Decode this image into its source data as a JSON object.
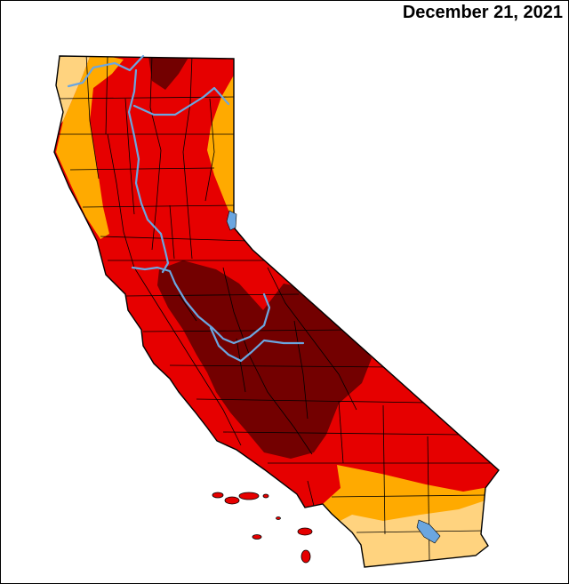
{
  "map": {
    "date_label": "December 21, 2021",
    "region": "California",
    "colors": {
      "abnormally_dry": "#FFD37F",
      "moderate": "#FFAA00",
      "severe": "#E60000",
      "extreme": "#730000",
      "county_lines": "#000000",
      "water": "#6BA6E0",
      "background": "#FFFFFF"
    }
  }
}
